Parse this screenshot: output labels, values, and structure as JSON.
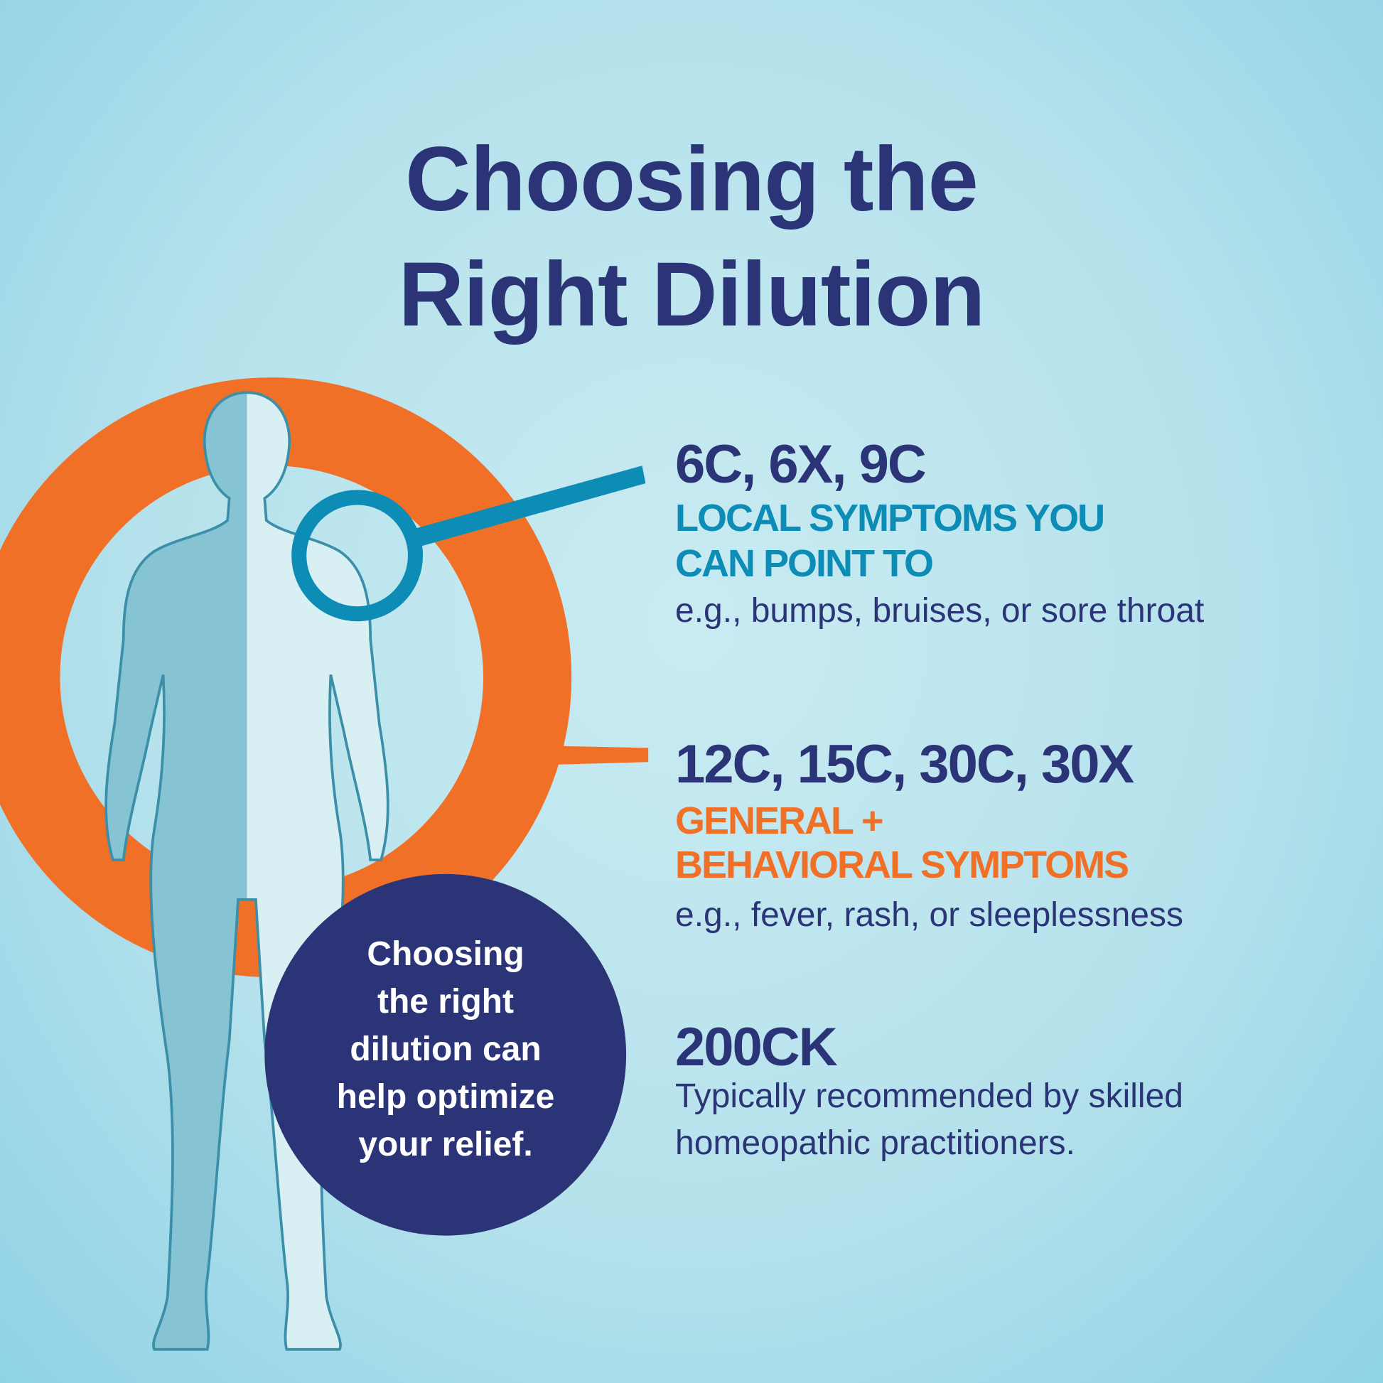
{
  "title": {
    "line1": "Choosing the",
    "line2": "Right Dilution"
  },
  "sections": [
    {
      "dosages": "6C, 6X, 9C",
      "category_lines": [
        "LOCAL SYMPTOMS YOU",
        "CAN POINT TO"
      ],
      "category_color": "#0d8db5",
      "description": "e.g., bumps, bruises, or sore throat"
    },
    {
      "dosages": "12C, 15C, 30C, 30X",
      "category_lines": [
        "GENERAL +",
        "BEHAVIORAL SYMPTOMS"
      ],
      "category_color": "#f07028",
      "description": "e.g., fever, rash, or sleeplessness"
    },
    {
      "dosages": "200CK",
      "description_lines": [
        "Typically recommended by skilled",
        "homeopathic practitioners."
      ]
    }
  ],
  "callout": {
    "lines": [
      "Choosing",
      "the right",
      "dilution can",
      "help optimize",
      "your relief."
    ]
  },
  "colors": {
    "navy": "#2a3477",
    "teal": "#0d8db5",
    "orange": "#f07028",
    "background": "#b6e2ec"
  },
  "icons": [
    "human-body-figure",
    "orange-brush-ring",
    "teal-magnifier-circle",
    "navy-callout-circle"
  ]
}
